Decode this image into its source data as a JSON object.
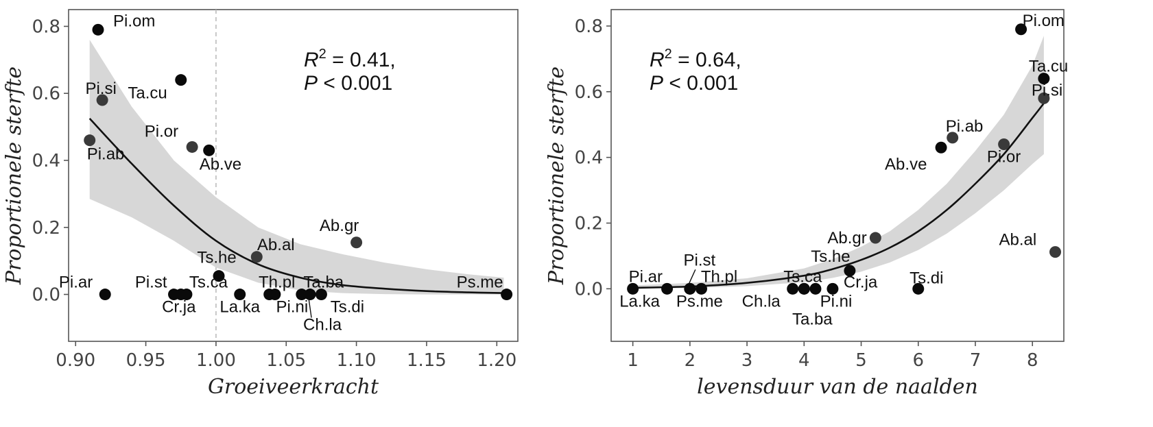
{
  "chart_data": [
    {
      "type": "scatter",
      "xlabel": "Groeiveerkracht",
      "ylabel": "Proportionele sterfte",
      "xlim": [
        0.895,
        1.215
      ],
      "ylim": [
        -0.14,
        0.85
      ],
      "xticks": [
        0.9,
        0.95,
        1.0,
        1.05,
        1.1,
        1.15,
        1.2
      ],
      "xtick_labels": [
        "0.90",
        "0.95",
        "1.00",
        "1.05",
        "1.10",
        "1.15",
        "1.20"
      ],
      "yticks": [
        0.0,
        0.2,
        0.4,
        0.6,
        0.8
      ],
      "ytick_labels": [
        "0.0",
        "0.2",
        "0.4",
        "0.6",
        "0.8"
      ],
      "reference_line_x": 1.0,
      "stats": {
        "r2_label": "R",
        "r2_sup": "2",
        "r2_value": " = 0.41,",
        "p_label": "P",
        "p_value": " < 0.001"
      },
      "points": [
        {
          "label": "Pi.om",
          "x": 0.916,
          "y": 0.79
        },
        {
          "label": "Ta.cu",
          "x": 0.975,
          "y": 0.64
        },
        {
          "label": "Pi.si",
          "x": 0.919,
          "y": 0.58
        },
        {
          "label": "Pi.ab",
          "x": 0.91,
          "y": 0.46
        },
        {
          "label": "Pi.or",
          "x": 0.983,
          "y": 0.44
        },
        {
          "label": "Ab.ve",
          "x": 0.995,
          "y": 0.43
        },
        {
          "label": "Ab.gr",
          "x": 1.1,
          "y": 0.155
        },
        {
          "label": "Ab.al",
          "x": 1.029,
          "y": 0.112
        },
        {
          "label": "Ts.he",
          "x": 1.002,
          "y": 0.055
        },
        {
          "label": "Pi.ar",
          "x": 0.921,
          "y": 0.0
        },
        {
          "label": "Pi.st",
          "x": 0.97,
          "y": 0.0
        },
        {
          "label": "Cr.ja",
          "x": 0.975,
          "y": 0.0
        },
        {
          "label": "Ts.ca",
          "x": 0.979,
          "y": 0.0
        },
        {
          "label": "La.ka",
          "x": 1.017,
          "y": 0.0
        },
        {
          "label": "Th.pl",
          "x": 1.038,
          "y": 0.0
        },
        {
          "label": "Pi.ni",
          "x": 1.042,
          "y": 0.0
        },
        {
          "label": "Ta.ba",
          "x": 1.061,
          "y": 0.0
        },
        {
          "label": "Ch.la",
          "x": 1.067,
          "y": 0.0
        },
        {
          "label": "Ts.di",
          "x": 1.075,
          "y": 0.0
        },
        {
          "label": "Ps.me",
          "x": 1.207,
          "y": 0.0
        }
      ],
      "fit": {
        "x": [
          0.91,
          0.94,
          0.97,
          1.0,
          1.03,
          1.06,
          1.09,
          1.12,
          1.15,
          1.18,
          1.205
        ],
        "y": [
          0.525,
          0.39,
          0.265,
          0.16,
          0.09,
          0.05,
          0.028,
          0.017,
          0.01,
          0.006,
          0.004
        ],
        "lower": [
          0.285,
          0.23,
          0.16,
          0.08,
          0.035,
          0.012,
          0.004,
          0.001,
          0.0,
          0.0,
          0.0
        ],
        "upper": [
          0.76,
          0.56,
          0.4,
          0.29,
          0.2,
          0.15,
          0.12,
          0.095,
          0.075,
          0.06,
          0.05
        ]
      }
    },
    {
      "type": "scatter",
      "xlabel": "levensduur van de naalden",
      "ylabel": "Proportionele sterfte",
      "xlim": [
        0.62,
        8.55
      ],
      "ylim": [
        -0.16,
        0.85
      ],
      "xticks": [
        1,
        2,
        3,
        4,
        5,
        6,
        7,
        8
      ],
      "xtick_labels": [
        "1",
        "2",
        "3",
        "4",
        "5",
        "6",
        "7",
        "8"
      ],
      "yticks": [
        0.0,
        0.2,
        0.4,
        0.6,
        0.8
      ],
      "ytick_labels": [
        "0.0",
        "0.2",
        "0.4",
        "0.6",
        "0.8"
      ],
      "stats": {
        "r2_label": "R",
        "r2_sup": "2",
        "r2_value": " = 0.64,",
        "p_label": "P",
        "p_value": " < 0.001"
      },
      "points": [
        {
          "label": "Pi.om",
          "x": 7.8,
          "y": 0.79
        },
        {
          "label": "Ta.cu",
          "x": 8.2,
          "y": 0.64
        },
        {
          "label": "Pi.si",
          "x": 8.2,
          "y": 0.58
        },
        {
          "label": "Pi.ab",
          "x": 6.6,
          "y": 0.46
        },
        {
          "label": "Ab.ve",
          "x": 6.4,
          "y": 0.43
        },
        {
          "label": "Pi.or",
          "x": 7.5,
          "y": 0.44
        },
        {
          "label": "Ab.gr",
          "x": 5.25,
          "y": 0.155
        },
        {
          "label": "Ab.al",
          "x": 8.4,
          "y": 0.112
        },
        {
          "label": "Ts.he",
          "x": 4.8,
          "y": 0.055
        },
        {
          "label": "Cr.ja",
          "x": 4.5,
          "y": 0.0
        },
        {
          "label": "Ts.di",
          "x": 6.0,
          "y": 0.0
        },
        {
          "label": "Pi.ar",
          "x": 1.0,
          "y": 0.0
        },
        {
          "label": "La.ka",
          "x": 1.6,
          "y": 0.0
        },
        {
          "label": "Pi.st",
          "x": 2.0,
          "y": 0.0
        },
        {
          "label": "Ps.me",
          "x": 2.0,
          "y": 0.0
        },
        {
          "label": "Th.pl",
          "x": 2.2,
          "y": 0.0
        },
        {
          "label": "Ch.la",
          "x": 3.8,
          "y": 0.0
        },
        {
          "label": "Ts.ca",
          "x": 4.0,
          "y": 0.0
        },
        {
          "label": "Ta.ba",
          "x": 4.0,
          "y": 0.0
        },
        {
          "label": "Pi.ni",
          "x": 4.2,
          "y": 0.0
        }
      ],
      "fit": {
        "x": [
          1.0,
          2.0,
          3.0,
          4.0,
          4.5,
          5.0,
          5.5,
          6.0,
          6.5,
          7.0,
          7.5,
          8.0,
          8.2
        ],
        "y": [
          0.003,
          0.007,
          0.018,
          0.04,
          0.06,
          0.088,
          0.125,
          0.175,
          0.24,
          0.32,
          0.41,
          0.52,
          0.565
        ],
        "lower": [
          0.0,
          0.002,
          0.008,
          0.02,
          0.033,
          0.052,
          0.08,
          0.118,
          0.168,
          0.23,
          0.3,
          0.38,
          0.41
        ],
        "upper": [
          0.01,
          0.018,
          0.032,
          0.062,
          0.09,
          0.128,
          0.175,
          0.24,
          0.32,
          0.42,
          0.53,
          0.68,
          0.77
        ]
      }
    }
  ]
}
